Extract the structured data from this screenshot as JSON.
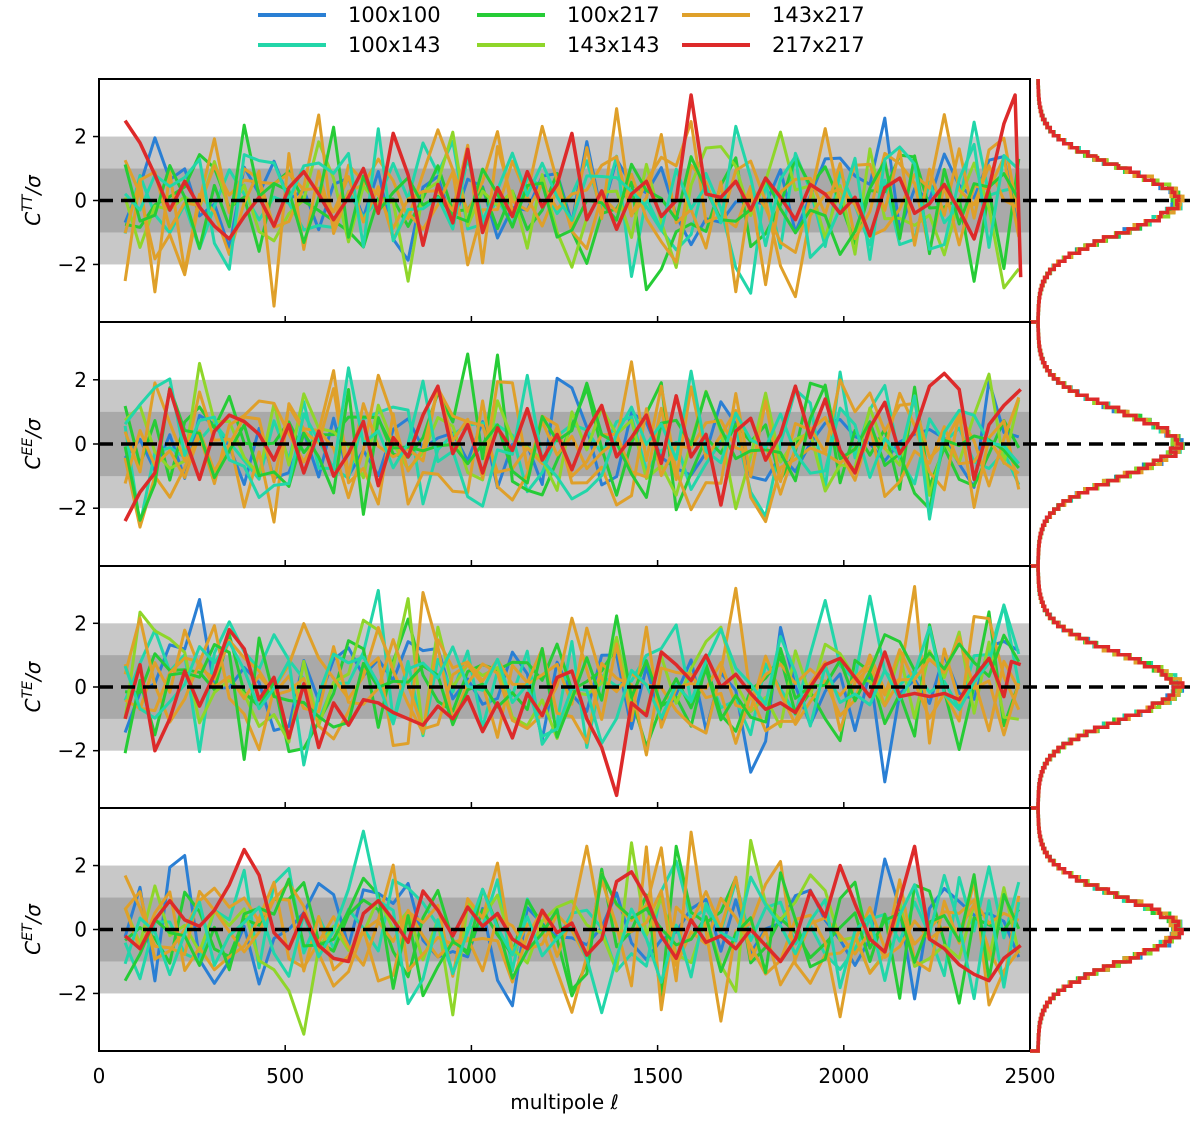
{
  "chart_data": {
    "type": "line",
    "description_note": "",
    "x": {
      "label": "multipole ℓ",
      "lim": [
        0,
        2500
      ],
      "ticks": [
        0,
        500,
        1000,
        1500,
        2000,
        2500
      ],
      "tick_labels": [
        "0",
        "500",
        "1000",
        "1500",
        "2000",
        "2500"
      ]
    },
    "y": {
      "lim": [
        -3.8,
        3.8
      ],
      "ticks": [
        -2,
        0,
        2
      ],
      "tick_labels": [
        "−2",
        "0",
        "2"
      ]
    },
    "bands": [
      {
        "range": [
          -2,
          2
        ],
        "color": "#c8c8c8"
      },
      {
        "range": [
          -1,
          1
        ],
        "color": "#a9a9a9"
      }
    ],
    "legend": {
      "placement": "top-center",
      "entries": [
        {
          "name": "100x100",
          "color": "#2a7fd4"
        },
        {
          "name": "100x143",
          "color": "#22d6a9"
        },
        {
          "name": "100x217",
          "color": "#26cc36"
        },
        {
          "name": "143x143",
          "color": "#8fd62a"
        },
        {
          "name": "143x217",
          "color": "#dfa02a"
        },
        {
          "name": "217x217",
          "color": "#dd2a2a"
        }
      ]
    },
    "panels": [
      {
        "ylabel_base": "C",
        "ylabel_sup": "TT",
        "ylabel_tail": "/σ",
        "red_series": [
          [
            70,
            2.5
          ],
          [
            110,
            1.8
          ],
          [
            150,
            0.8
          ],
          [
            190,
            -0.3
          ],
          [
            230,
            0.6
          ],
          [
            270,
            -0.2
          ],
          [
            310,
            -0.8
          ],
          [
            350,
            -1.2
          ],
          [
            390,
            -0.5
          ],
          [
            430,
            0.1
          ],
          [
            470,
            -0.8
          ],
          [
            510,
            0.4
          ],
          [
            550,
            0.9
          ],
          [
            590,
            0.2
          ],
          [
            630,
            -0.6
          ],
          [
            670,
            0.1
          ],
          [
            710,
            1.0
          ],
          [
            750,
            -0.4
          ],
          [
            790,
            2.1
          ],
          [
            830,
            0.8
          ],
          [
            870,
            -1.4
          ],
          [
            910,
            0.5
          ],
          [
            950,
            -0.7
          ],
          [
            990,
            1.6
          ],
          [
            1030,
            -1.0
          ],
          [
            1070,
            0.4
          ],
          [
            1110,
            -0.5
          ],
          [
            1150,
            0.9
          ],
          [
            1190,
            -0.2
          ],
          [
            1230,
            0.5
          ],
          [
            1270,
            2.1
          ],
          [
            1310,
            -0.6
          ],
          [
            1350,
            0.3
          ],
          [
            1390,
            -0.9
          ],
          [
            1430,
            0.2
          ],
          [
            1470,
            0.6
          ],
          [
            1510,
            -0.5
          ],
          [
            1550,
            0.0
          ],
          [
            1590,
            3.3
          ],
          [
            1630,
            0.2
          ],
          [
            1670,
            0.1
          ],
          [
            1710,
            0.6
          ],
          [
            1750,
            -0.3
          ],
          [
            1790,
            0.7
          ],
          [
            1830,
            0.1
          ],
          [
            1870,
            -0.6
          ],
          [
            1910,
            0.5
          ],
          [
            1950,
            0.2
          ],
          [
            1990,
            -0.4
          ],
          [
            2030,
            0.1
          ],
          [
            2070,
            -1.1
          ],
          [
            2110,
            0.4
          ],
          [
            2150,
            0.7
          ],
          [
            2190,
            -0.4
          ],
          [
            2230,
            -0.1
          ],
          [
            2270,
            0.5
          ],
          [
            2310,
            -0.3
          ],
          [
            2350,
            -1.2
          ],
          [
            2390,
            0.4
          ],
          [
            2430,
            2.4
          ],
          [
            2460,
            3.3
          ],
          [
            2475,
            -2.4
          ]
        ],
        "hist_profile": "TT"
      },
      {
        "ylabel_base": "C",
        "ylabel_sup": "EE",
        "ylabel_tail": "/σ",
        "red_series": [
          [
            70,
            -2.4
          ],
          [
            110,
            -1.5
          ],
          [
            150,
            -0.9
          ],
          [
            190,
            1.7
          ],
          [
            230,
            0.2
          ],
          [
            270,
            -1.1
          ],
          [
            310,
            0.4
          ],
          [
            350,
            0.9
          ],
          [
            390,
            0.7
          ],
          [
            430,
            0.3
          ],
          [
            470,
            -0.5
          ],
          [
            510,
            0.6
          ],
          [
            550,
            -0.9
          ],
          [
            590,
            0.4
          ],
          [
            630,
            -1.0
          ],
          [
            670,
            -0.3
          ],
          [
            710,
            0.7
          ],
          [
            750,
            -1.3
          ],
          [
            790,
            0.2
          ],
          [
            830,
            -0.4
          ],
          [
            870,
            0.9
          ],
          [
            910,
            1.8
          ],
          [
            950,
            -0.3
          ],
          [
            990,
            0.6
          ],
          [
            1030,
            -0.9
          ],
          [
            1070,
            0.5
          ],
          [
            1110,
            -0.2
          ],
          [
            1150,
            1.1
          ],
          [
            1190,
            -0.5
          ],
          [
            1230,
            0.3
          ],
          [
            1270,
            -0.8
          ],
          [
            1310,
            0.4
          ],
          [
            1350,
            1.2
          ],
          [
            1390,
            -0.4
          ],
          [
            1430,
            0.2
          ],
          [
            1470,
            0.9
          ],
          [
            1510,
            -0.6
          ],
          [
            1550,
            1.5
          ],
          [
            1590,
            -0.4
          ],
          [
            1630,
            0.3
          ],
          [
            1670,
            -1.9
          ],
          [
            1710,
            0.4
          ],
          [
            1750,
            0.8
          ],
          [
            1790,
            -0.5
          ],
          [
            1830,
            0.3
          ],
          [
            1870,
            1.8
          ],
          [
            1910,
            0.2
          ],
          [
            1950,
            1.4
          ],
          [
            1990,
            -0.2
          ],
          [
            2030,
            -0.9
          ],
          [
            2070,
            0.5
          ],
          [
            2110,
            1.3
          ],
          [
            2150,
            -0.3
          ],
          [
            2190,
            0.4
          ],
          [
            2230,
            1.8
          ],
          [
            2270,
            2.2
          ],
          [
            2310,
            1.7
          ],
          [
            2350,
            -1.1
          ],
          [
            2390,
            0.6
          ],
          [
            2430,
            1.2
          ],
          [
            2475,
            1.7
          ]
        ],
        "hist_profile": "EE"
      },
      {
        "ylabel_base": "C",
        "ylabel_sup": "TE",
        "ylabel_tail": "/σ",
        "red_series": [
          [
            70,
            -1.0
          ],
          [
            110,
            0.7
          ],
          [
            150,
            -2.0
          ],
          [
            190,
            -1.0
          ],
          [
            230,
            0.5
          ],
          [
            270,
            -0.6
          ],
          [
            310,
            0.4
          ],
          [
            350,
            1.8
          ],
          [
            390,
            1.2
          ],
          [
            430,
            -0.4
          ],
          [
            470,
            0.3
          ],
          [
            510,
            -1.6
          ],
          [
            550,
            0.1
          ],
          [
            590,
            -1.9
          ],
          [
            630,
            -0.5
          ],
          [
            670,
            -1.2
          ],
          [
            710,
            -0.4
          ],
          [
            750,
            -0.5
          ],
          [
            790,
            -0.8
          ],
          [
            830,
            -1.0
          ],
          [
            870,
            -1.2
          ],
          [
            910,
            -0.6
          ],
          [
            950,
            -1.0
          ],
          [
            990,
            -0.3
          ],
          [
            1030,
            -1.4
          ],
          [
            1070,
            -0.5
          ],
          [
            1110,
            -1.6
          ],
          [
            1150,
            -0.2
          ],
          [
            1190,
            -0.9
          ],
          [
            1230,
            0.3
          ],
          [
            1270,
            0.5
          ],
          [
            1310,
            -1.0
          ],
          [
            1350,
            -1.9
          ],
          [
            1390,
            -3.4
          ],
          [
            1430,
            -0.5
          ],
          [
            1470,
            -0.9
          ],
          [
            1510,
            1.1
          ],
          [
            1550,
            0.7
          ],
          [
            1590,
            0.2
          ],
          [
            1630,
            1.0
          ],
          [
            1670,
            0.0
          ],
          [
            1710,
            0.4
          ],
          [
            1750,
            -0.2
          ],
          [
            1790,
            -0.7
          ],
          [
            1830,
            -0.5
          ],
          [
            1870,
            -0.8
          ],
          [
            1910,
            0.0
          ],
          [
            1950,
            0.7
          ],
          [
            1990,
            0.9
          ],
          [
            2030,
            0.3
          ],
          [
            2070,
            -0.3
          ],
          [
            2110,
            1.1
          ],
          [
            2150,
            -0.3
          ],
          [
            2190,
            -0.2
          ],
          [
            2230,
            -0.3
          ],
          [
            2270,
            -0.2
          ],
          [
            2310,
            -0.4
          ],
          [
            2350,
            0.3
          ],
          [
            2390,
            0.9
          ],
          [
            2430,
            -0.3
          ],
          [
            2450,
            0.8
          ],
          [
            2475,
            0.7
          ]
        ],
        "hist_profile": "TE"
      },
      {
        "ylabel_base": "C",
        "ylabel_sup": "ET",
        "ylabel_tail": "/σ",
        "red_series": [
          [
            70,
            -0.2
          ],
          [
            110,
            -0.6
          ],
          [
            150,
            0.3
          ],
          [
            190,
            0.9
          ],
          [
            230,
            0.3
          ],
          [
            270,
            0.1
          ],
          [
            310,
            0.6
          ],
          [
            350,
            1.4
          ],
          [
            390,
            2.5
          ],
          [
            430,
            1.7
          ],
          [
            470,
            -0.1
          ],
          [
            510,
            -0.6
          ],
          [
            550,
            0.5
          ],
          [
            590,
            -0.5
          ],
          [
            630,
            -0.9
          ],
          [
            670,
            -1.0
          ],
          [
            710,
            0.5
          ],
          [
            750,
            0.9
          ],
          [
            790,
            0.3
          ],
          [
            830,
            -0.4
          ],
          [
            870,
            1.2
          ],
          [
            910,
            0.6
          ],
          [
            950,
            -0.2
          ],
          [
            990,
            0.7
          ],
          [
            1030,
            0.1
          ],
          [
            1070,
            0.5
          ],
          [
            1110,
            -0.3
          ],
          [
            1150,
            -0.6
          ],
          [
            1190,
            0.6
          ],
          [
            1230,
            -0.1
          ],
          [
            1270,
            0.2
          ],
          [
            1310,
            -0.8
          ],
          [
            1350,
            -0.3
          ],
          [
            1390,
            1.5
          ],
          [
            1430,
            1.8
          ],
          [
            1470,
            1.0
          ],
          [
            1510,
            -0.2
          ],
          [
            1550,
            -0.9
          ],
          [
            1590,
            0.3
          ],
          [
            1630,
            -0.4
          ],
          [
            1670,
            -0.2
          ],
          [
            1710,
            -0.6
          ],
          [
            1750,
            0.0
          ],
          [
            1790,
            -0.5
          ],
          [
            1830,
            -1.0
          ],
          [
            1870,
            -0.3
          ],
          [
            1910,
            1.2
          ],
          [
            1950,
            0.4
          ],
          [
            1990,
            2.0
          ],
          [
            2030,
            0.8
          ],
          [
            2070,
            -0.3
          ],
          [
            2110,
            -0.7
          ],
          [
            2150,
            0.9
          ],
          [
            2190,
            2.6
          ],
          [
            2230,
            -0.3
          ],
          [
            2270,
            -0.6
          ],
          [
            2310,
            -1.1
          ],
          [
            2350,
            -1.4
          ],
          [
            2390,
            -1.6
          ],
          [
            2430,
            -0.9
          ],
          [
            2475,
            -0.5
          ]
        ],
        "hist_profile": "ET"
      }
    ]
  }
}
